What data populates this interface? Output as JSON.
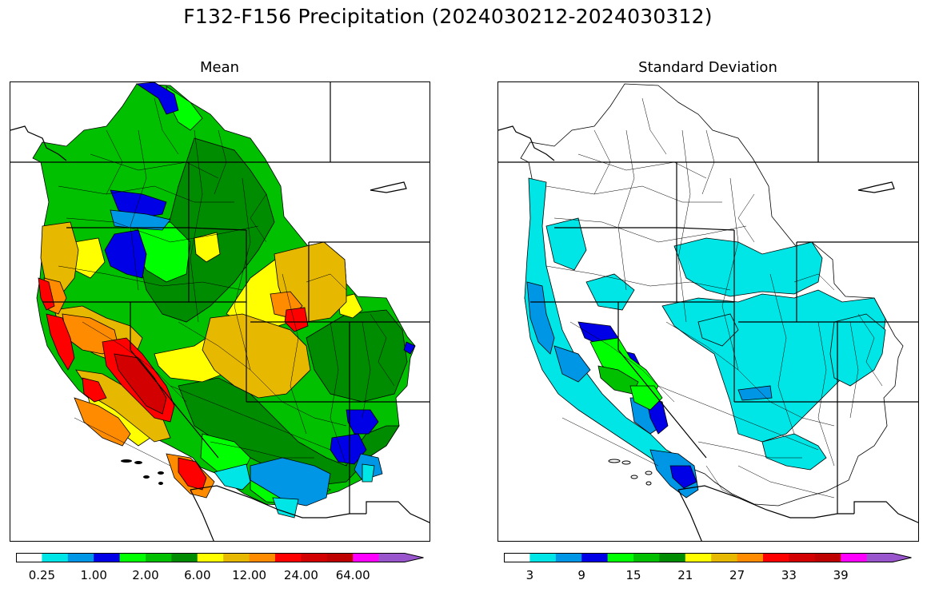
{
  "figure": {
    "title": "F132-F156 Precipitation (2024030212-2024030312)"
  },
  "colors": {
    "palette": [
      "#ffffff",
      "#00e6e6",
      "#0096e6",
      "#0000e6",
      "#00ff00",
      "#00c000",
      "#008c00",
      "#ffff00",
      "#e6b800",
      "#ff8c00",
      "#ff0000",
      "#d20000",
      "#be0000",
      "#ff00ff",
      "#9955cc"
    ],
    "boundary": "#000000",
    "panel_background": "#ffffff"
  },
  "panels": [
    {
      "id": "mean",
      "title": "Mean",
      "colorbar": {
        "levels": 15,
        "tick_labels": [
          "0.25",
          "1.00",
          "2.00",
          "6.00",
          "12.00",
          "24.00",
          "64.00"
        ]
      }
    },
    {
      "id": "std",
      "title": "Standard Deviation",
      "colorbar": {
        "levels": 15,
        "tick_labels": [
          "3",
          "9",
          "15",
          "21",
          "27",
          "33",
          "39"
        ]
      }
    }
  ]
}
